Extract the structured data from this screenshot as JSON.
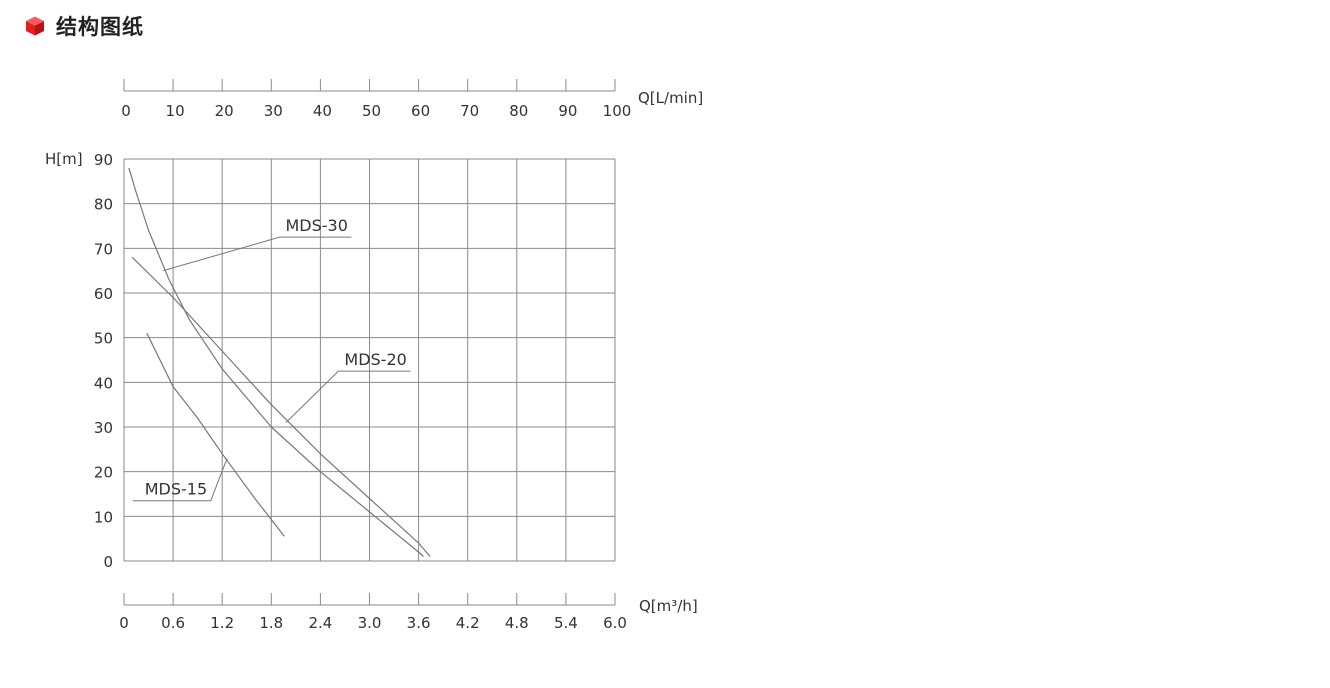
{
  "header": {
    "title": "结构图纸",
    "icon": "cube-icon",
    "icon_color": "#e02020"
  },
  "chart_data": {
    "type": "line",
    "title": "",
    "xlabel": "Q[m³/h]",
    "xlabel_alt": "Q[L/min]",
    "ylabel": "H[m]",
    "xlim": [
      0,
      6.0
    ],
    "ylim": [
      0,
      90
    ],
    "x_ticks": [
      "0",
      "0.6",
      "1.2",
      "1.8",
      "2.4",
      "3.0",
      "3.6",
      "4.2",
      "4.8",
      "5.4",
      "6.0"
    ],
    "x_ticks_alt": [
      "0",
      "10",
      "20",
      "30",
      "40",
      "50",
      "60",
      "70",
      "80",
      "90",
      "100"
    ],
    "y_ticks": [
      "0",
      "10",
      "20",
      "30",
      "40",
      "50",
      "60",
      "70",
      "80",
      "90"
    ],
    "grid": true,
    "series": [
      {
        "name": "MDS-30",
        "points": [
          [
            0.06,
            88
          ],
          [
            0.14,
            83
          ],
          [
            0.3,
            74
          ],
          [
            0.55,
            63
          ],
          [
            0.8,
            54
          ],
          [
            1.2,
            43
          ],
          [
            1.8,
            30
          ],
          [
            2.4,
            20
          ],
          [
            3.0,
            11
          ],
          [
            3.6,
            2
          ],
          [
            3.66,
            1
          ]
        ]
      },
      {
        "name": "MDS-20",
        "points": [
          [
            0.1,
            68
          ],
          [
            0.6,
            59
          ],
          [
            1.2,
            47
          ],
          [
            1.8,
            35
          ],
          [
            2.4,
            24
          ],
          [
            3.0,
            14
          ],
          [
            3.6,
            4
          ],
          [
            3.74,
            1
          ]
        ]
      },
      {
        "name": "MDS-15",
        "points": [
          [
            0.28,
            51
          ],
          [
            0.6,
            39
          ],
          [
            0.9,
            32
          ],
          [
            1.2,
            24
          ],
          [
            1.6,
            14
          ],
          [
            1.96,
            5.5
          ]
        ]
      }
    ],
    "label_callouts": [
      {
        "series": "MDS-30",
        "label_at": [
          1.9,
          72.5
        ],
        "pointer_to": [
          0.48,
          65
        ]
      },
      {
        "series": "MDS-20",
        "label_at": [
          2.62,
          42.5
        ],
        "pointer_to": [
          1.98,
          31
        ]
      },
      {
        "series": "MDS-15",
        "label_at": [
          0.18,
          13.5
        ],
        "pointer_to": [
          1.26,
          23
        ]
      }
    ],
    "line_color": "#777777",
    "grid_color": "#8a8a8a"
  }
}
